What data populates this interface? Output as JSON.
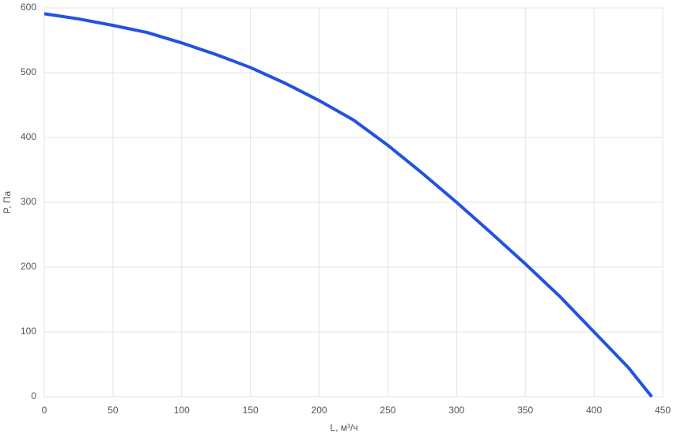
{
  "chart_data": {
    "type": "line",
    "x_label": "L, м³/ч",
    "y_label": "P, Па",
    "x": [
      0,
      25,
      50,
      75,
      100,
      125,
      150,
      175,
      200,
      225,
      250,
      275,
      300,
      325,
      350,
      375,
      400,
      425,
      442
    ],
    "series": [
      {
        "color": "#2452e0",
        "values": [
          591,
          583,
          573,
          562,
          546,
          528,
          508,
          484,
          457,
          427,
          388,
          345,
          300,
          253,
          205,
          155,
          100,
          45,
          0
        ]
      }
    ],
    "xlim": [
      0,
      450
    ],
    "xticks": [
      0,
      50,
      100,
      150,
      200,
      250,
      300,
      350,
      400,
      450
    ],
    "ylim": [
      0,
      600
    ],
    "yticks": [
      0,
      100,
      200,
      300,
      400,
      500,
      600
    ],
    "grid": true
  }
}
